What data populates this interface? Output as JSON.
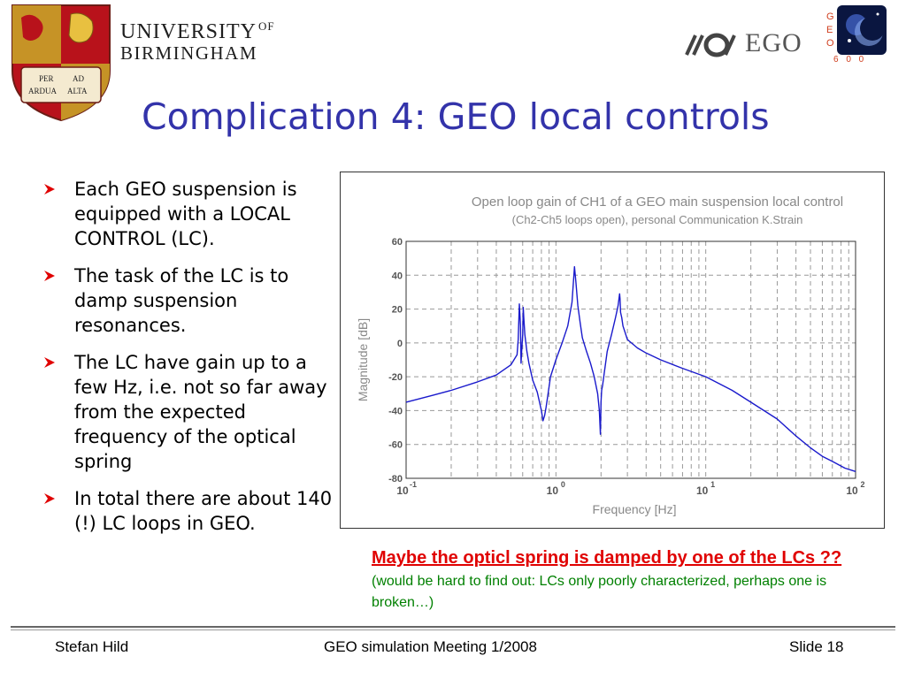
{
  "header": {
    "university_line1": "UNIVERSITY",
    "university_of": "OF",
    "university_line2": "BIRMINGHAM",
    "motto_per": "PER",
    "motto_ad": "AD",
    "motto_ardua": "ARDUA",
    "motto_alta": "ALTA",
    "ego_text": "EGO",
    "geo_letters": [
      "G",
      "E",
      "O"
    ],
    "geo_numbers": "6 0 0"
  },
  "slide": {
    "title": "Complication 4: GEO local controls"
  },
  "bullets": [
    "Each GEO suspension is equipped with a LOCAL CONTROL (LC).",
    "The task of the LC is to damp suspension resonances.",
    "The LC have gain up to a few Hz, i.e. not so far away from the expected frequency of the optical spring",
    "In total there are about 140 (!) LC loops in GEO."
  ],
  "note": {
    "main": "Maybe the opticl spring is damped by one of the LCs ??",
    "sub": "(would be hard to find out: LCs only poorly characterized, perhaps one is broken…)"
  },
  "footer": {
    "left": "Stefan Hild",
    "center": "GEO simulation Meeting 1/2008",
    "right": "Slide 18"
  },
  "colors": {
    "title": "#3333aa",
    "bullet_arrow": "#e00000",
    "curve": "#1a1acc",
    "note_main": "#e00000",
    "note_sub": "#008000",
    "chart_text": "#888888"
  },
  "chart_data": {
    "type": "line",
    "title": "Open loop gain of CH1 of a GEO main suspension local control",
    "subtitle": "(Ch2-Ch5 loops open), personal Communication K.Strain",
    "xlabel": "Frequency [Hz]",
    "ylabel": "Magnitude [dB]",
    "xscale": "log",
    "xlim": [
      0.1,
      100
    ],
    "ylim": [
      -80,
      60
    ],
    "xticks": [
      {
        "base": "10",
        "exp": "-1",
        "value": 0.1
      },
      {
        "base": "10",
        "exp": "0",
        "value": 1
      },
      {
        "base": "10",
        "exp": "1",
        "value": 10
      },
      {
        "base": "10",
        "exp": "2",
        "value": 100
      }
    ],
    "yticks": [
      "60",
      "40",
      "20",
      "0",
      "-20",
      "-40",
      "-60",
      "-80"
    ],
    "ytick_values": [
      60,
      40,
      20,
      0,
      -20,
      -40,
      -60,
      -80
    ],
    "grid": "dashed",
    "series": [
      {
        "x": [
          0.1,
          0.15,
          0.2,
          0.3,
          0.4,
          0.5,
          0.55,
          0.56,
          0.57,
          0.58,
          0.585,
          0.59,
          0.6,
          0.605,
          0.61,
          0.62,
          0.64,
          0.66,
          0.7,
          0.75,
          0.8,
          0.82,
          0.84,
          0.86,
          0.88,
          0.92,
          1.0,
          1.1,
          1.2,
          1.28,
          1.33,
          1.36,
          1.4,
          1.45,
          1.5,
          1.6,
          1.7,
          1.8,
          1.9,
          1.95,
          1.98,
          2.0,
          2.02,
          2.05,
          2.1,
          2.2,
          2.35,
          2.5,
          2.6,
          2.66,
          2.68,
          2.7,
          2.75,
          2.8,
          3.0,
          3.5,
          4.0,
          5.0,
          7.0,
          10.0,
          15.0,
          20.0,
          30.0,
          40.0,
          50.0,
          60.0,
          70.0,
          85.0,
          100.0
        ],
        "y": [
          -35,
          -31,
          -28,
          -23,
          -19,
          -13,
          -7,
          2,
          23,
          10,
          -12,
          -6,
          5,
          21,
          15,
          5,
          -5,
          -12,
          -22,
          -29,
          -40,
          -46,
          -43,
          -38,
          -32,
          -20,
          -10,
          0,
          10,
          24,
          45,
          36,
          22,
          12,
          3,
          -5,
          -12,
          -20,
          -30,
          -40,
          -54,
          -35,
          -28,
          -25,
          -18,
          -5,
          5,
          15,
          22,
          29,
          26,
          18,
          15,
          10,
          2,
          -3,
          -6,
          -10,
          -15,
          -20,
          -28,
          -35,
          -45,
          -55,
          -62,
          -67,
          -70,
          -74,
          -76
        ]
      }
    ]
  }
}
